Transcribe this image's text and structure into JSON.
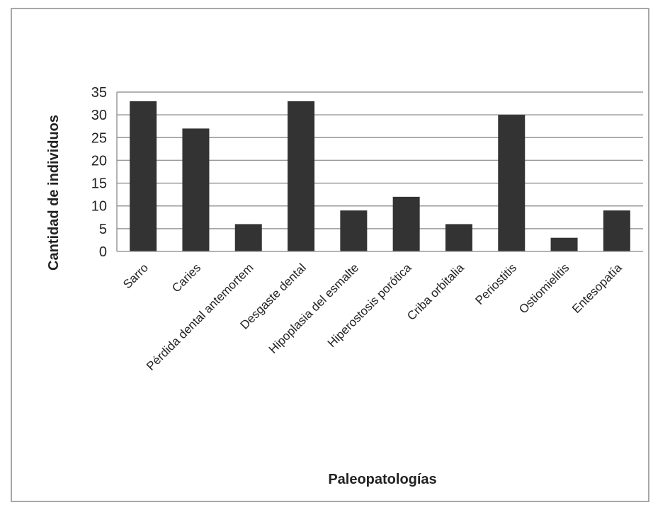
{
  "chart_data": {
    "type": "bar",
    "title": "",
    "xlabel": "Paleopatologías",
    "ylabel": "Cantidad de individuos",
    "categories": [
      "Sarro",
      "Caries",
      "Pérdida dental antemortem",
      "Desgaste dental",
      "Hipoplasia del esmalte",
      "Hiperostosis porótica",
      "Criba orbitalia",
      "Periostitis",
      "Ostiomielitis",
      "Entesopatía"
    ],
    "values": [
      33,
      27,
      6,
      33,
      9,
      12,
      6,
      30,
      3,
      9
    ],
    "ylim": [
      0,
      35
    ],
    "yticks": [
      0,
      5,
      10,
      15,
      20,
      25,
      30,
      35
    ],
    "grid": true,
    "legend": "none",
    "colors": {
      "bar": "#333333",
      "grid": "#9a9a9a",
      "frame": "#888888"
    }
  }
}
